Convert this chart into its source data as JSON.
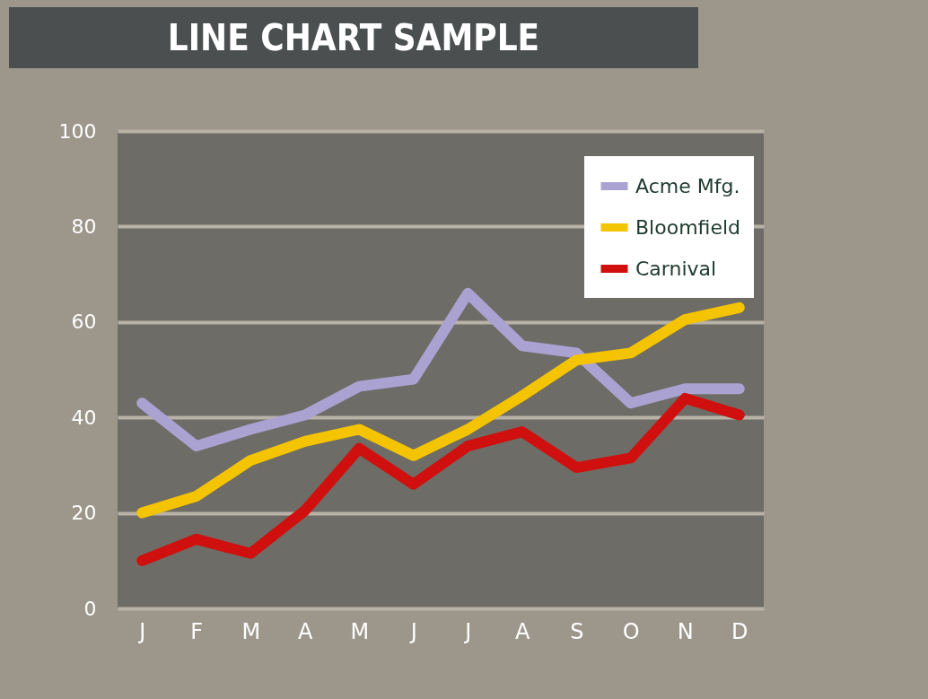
{
  "chart_data": {
    "type": "line",
    "title": "LINE CHART SAMPLE",
    "categories": [
      "J",
      "F",
      "M",
      "A",
      "M",
      "J",
      "J",
      "A",
      "S",
      "O",
      "N",
      "D"
    ],
    "series": [
      {
        "name": "Acme Mfg.",
        "color": "#aaa3d2",
        "values": [
          43,
          34,
          37.5,
          40.5,
          46.5,
          48,
          66,
          55,
          53.5,
          43,
          46,
          46
        ]
      },
      {
        "name": "Bloomfield",
        "color": "#f5c400",
        "values": [
          20,
          23.5,
          31,
          35,
          37.5,
          32,
          37.5,
          44.5,
          52,
          53.5,
          60.5,
          63
        ]
      },
      {
        "name": "Carnival",
        "color": "#d0100e",
        "values": [
          10,
          14.5,
          11.5,
          20.5,
          33.5,
          26,
          34,
          37,
          29.5,
          31.5,
          44,
          40.5
        ]
      }
    ],
    "ylim": [
      0,
      100
    ],
    "yticks": [
      0,
      20,
      40,
      60,
      80,
      100
    ],
    "grid": "y",
    "legend": "top right",
    "marker": "none",
    "line_style": "solid"
  }
}
